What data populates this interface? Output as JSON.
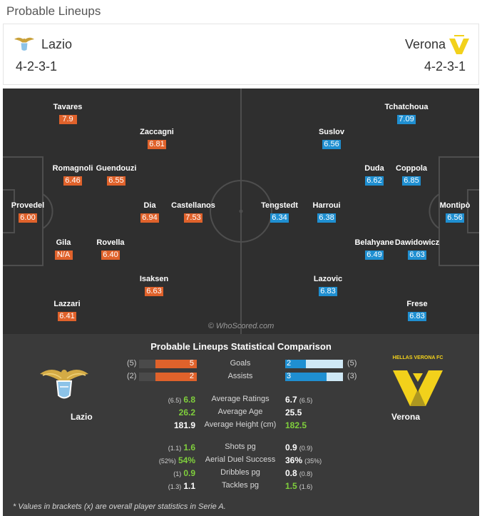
{
  "page_title": "Probable Lineups",
  "home": {
    "name": "Lazio",
    "formation": "4-2-3-1",
    "players": [
      {
        "name": "Tavares",
        "rating": "7.9"
      },
      {
        "name": "Zaccagni",
        "rating": "6.81"
      },
      {
        "name": "Romagnoli",
        "rating": "6.46"
      },
      {
        "name": "Guendouzi",
        "rating": "6.55"
      },
      {
        "name": "Provedel",
        "rating": "6.00"
      },
      {
        "name": "Dia",
        "rating": "6.94"
      },
      {
        "name": "Castellanos",
        "rating": "7.53"
      },
      {
        "name": "Gila",
        "rating": "N/A"
      },
      {
        "name": "Rovella",
        "rating": "6.40"
      },
      {
        "name": "Isaksen",
        "rating": "6.63"
      },
      {
        "name": "Lazzari",
        "rating": "6.41"
      }
    ]
  },
  "away": {
    "name": "Verona",
    "formation": "4-2-3-1",
    "players": [
      {
        "name": "Tchatchoua",
        "rating": "7.09"
      },
      {
        "name": "Suslov",
        "rating": "6.56"
      },
      {
        "name": "Duda",
        "rating": "6.62"
      },
      {
        "name": "Coppola",
        "rating": "6.85"
      },
      {
        "name": "Tengstedt",
        "rating": "6.34"
      },
      {
        "name": "Harroui",
        "rating": "6.38"
      },
      {
        "name": "Montipò",
        "rating": "6.56"
      },
      {
        "name": "Belahyane",
        "rating": "6.49"
      },
      {
        "name": "Dawidowicz",
        "rating": "6.63"
      },
      {
        "name": "Lazovic",
        "rating": "6.83"
      },
      {
        "name": "Frese",
        "rating": "6.83"
      }
    ]
  },
  "watermark": "© WhoScored.com",
  "stats": {
    "title": "Probable Lineups Statistical Comparison",
    "home_team": "Lazio",
    "away_team": "Verona",
    "away_logo_text": "HELLAS VERONA FC",
    "bars": [
      {
        "label": "Goals",
        "home_value": "5",
        "home_bracket": "(5)",
        "away_value": "2",
        "away_bracket": "(5)",
        "home_ratio": 0.71,
        "away_ratio": 0.36
      },
      {
        "label": "Assists",
        "home_value": "2",
        "home_bracket": "(2)",
        "away_value": "3",
        "away_bracket": "(3)",
        "home_ratio": 0.71,
        "away_ratio": 0.71
      }
    ],
    "group1": [
      {
        "label": "Average Ratings",
        "home_sub": "(6.5)",
        "home_value": "6.8",
        "away_value": "6.7",
        "away_sub": "(6.5)",
        "winner": "home"
      },
      {
        "label": "Average Age",
        "home_sub": "",
        "home_value": "26.2",
        "away_value": "25.5",
        "away_sub": "",
        "winner": "home"
      },
      {
        "label": "Average Height (cm)",
        "home_sub": "",
        "home_value": "181.9",
        "away_value": "182.5",
        "away_sub": "",
        "winner": "away"
      }
    ],
    "group2": [
      {
        "label": "Shots pg",
        "home_sub": "(1.1)",
        "home_value": "1.6",
        "away_value": "0.9",
        "away_sub": "(0.9)",
        "winner": "home"
      },
      {
        "label": "Aerial Duel Success",
        "home_sub": "(52%)",
        "home_value": "54%",
        "away_value": "36%",
        "away_sub": "(35%)",
        "winner": "home"
      },
      {
        "label": "Dribbles pg",
        "home_sub": "(1)",
        "home_value": "0.9",
        "away_value": "0.8",
        "away_sub": "(0.8)",
        "winner": "home"
      },
      {
        "label": "Tackles pg",
        "home_sub": "(1.3)",
        "home_value": "1.1",
        "away_value": "1.5",
        "away_sub": "(1.6)",
        "winner": "away"
      }
    ],
    "footnote": "* Values in brackets (x) are overall player statistics in Serie A."
  },
  "colors": {
    "home_accent": "#e0622b",
    "away_accent": "#1f8fd1",
    "win_green": "#7fcf3c",
    "verona_yellow": "#f2d11b"
  },
  "icons": {
    "home_logo": "lazio-eagle-icon",
    "away_logo": "verona-crest-icon"
  }
}
